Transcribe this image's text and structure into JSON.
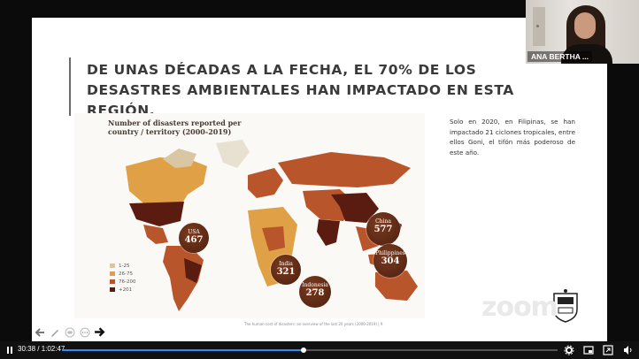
{
  "slide": {
    "title": "De unas décadas a la fecha, el 70% de los desastres ambientales han impactado en esta región.",
    "side_text": "Solo en 2020, en Filipinas, se han impactado 21 ciclones tropicales, entre ellos Goni, el tifón más poderoso de este año.",
    "map": {
      "title": "Number of disasters reported per country / territory (2000-2019)",
      "source": "The human cost of disasters: an overview of the last 20 years (2000-2019) | 9",
      "callouts": [
        {
          "name": "USA",
          "value": "467"
        },
        {
          "name": "China",
          "value": "577"
        },
        {
          "name": "India",
          "value": "321"
        },
        {
          "name": "Philippines",
          "value": "304"
        },
        {
          "name": "Indonesia",
          "value": "278"
        }
      ],
      "legend": [
        {
          "label": "1-25",
          "color": "#d9c7a4"
        },
        {
          "label": "26-75",
          "color": "#e0a046"
        },
        {
          "label": "76-200",
          "color": "#b8552a"
        },
        {
          "label": "+201",
          "color": "#5a1c10"
        }
      ]
    },
    "zoom_watermark": "zoom"
  },
  "webcam": {
    "name": "ANA BERTHA ..."
  },
  "player": {
    "time": "30:38 / 1:02:47",
    "progress_fraction": 0.488
  },
  "colors": {
    "accent": "#2b8cff",
    "map_dark": "#5a1c10",
    "map_mid": "#b8552a",
    "map_light": "#e0a046"
  }
}
